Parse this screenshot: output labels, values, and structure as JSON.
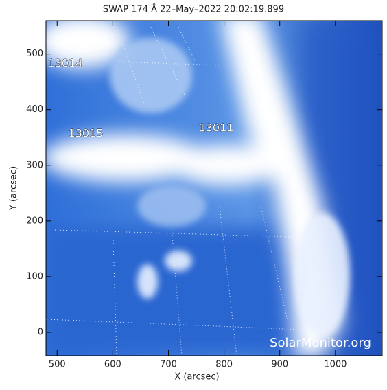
{
  "chart_data": {
    "type": "image",
    "title": "SWAP 174 Å 22–May–2022 20:02:19.899",
    "x_label": "X (arcsec)",
    "y_label": "Y (arcsec)",
    "xlim": [
      480,
      1084
    ],
    "ylim": [
      -42,
      560
    ],
    "xticks": [
      500,
      600,
      700,
      800,
      900,
      1000
    ],
    "yticks": [
      0,
      100,
      200,
      300,
      400,
      500
    ],
    "annotations": [
      "13014",
      "13015",
      "13011"
    ],
    "watermark": "SolarMonitor.org"
  }
}
